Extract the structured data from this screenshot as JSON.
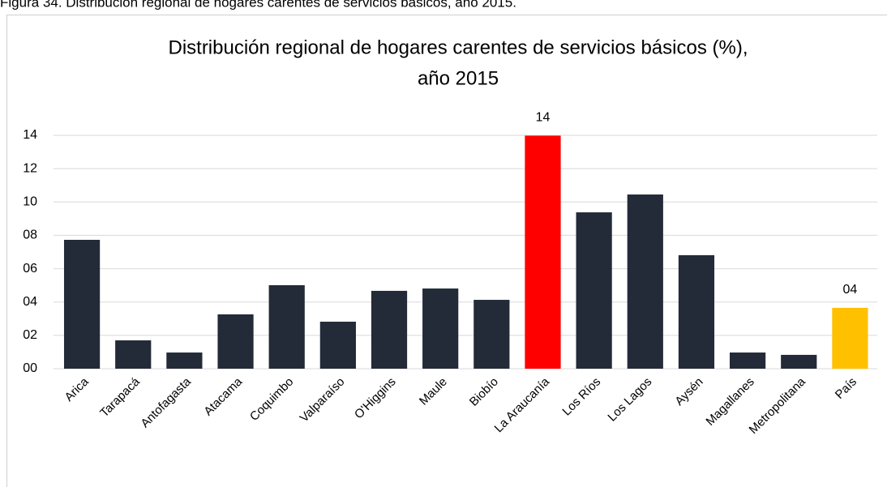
{
  "caption": "Figura 34. Distribución regional de hogares carentes de servicios básicos, año 2015.",
  "chart_data": {
    "type": "bar",
    "title": [
      "Distribución regional de hogares carentes de servicios básicos (%),",
      "año 2015"
    ],
    "categories": [
      "Arica",
      "Tarapacá",
      "Antofagasta",
      "Atacama",
      "Coquimbo",
      "Valparaíso",
      "O'Higgins",
      "Maule",
      "Biobío",
      "La Araucanía",
      "Los Ríos",
      "Los Lagos",
      "Aysén",
      "Magallanes",
      "Metropolitana",
      "País"
    ],
    "values": [
      7.73,
      1.7,
      0.97,
      3.26,
      5.01,
      2.82,
      4.67,
      4.81,
      4.13,
      13.98,
      9.38,
      10.45,
      6.81,
      0.97,
      0.83,
      3.65
    ],
    "value_labels": [
      null,
      null,
      null,
      null,
      null,
      null,
      null,
      null,
      null,
      "14",
      null,
      null,
      null,
      null,
      null,
      "04"
    ],
    "colors": [
      "#232a38",
      "#232a38",
      "#232a38",
      "#232a38",
      "#232a38",
      "#232a38",
      "#232a38",
      "#232a38",
      "#232a38",
      "#ff0000",
      "#232a38",
      "#232a38",
      "#232a38",
      "#232a38",
      "#232a38",
      "#ffc000"
    ],
    "ylim": [
      0,
      14
    ],
    "yticks": [
      {
        "value": 0,
        "label": "00"
      },
      {
        "value": 2,
        "label": "02"
      },
      {
        "value": 4,
        "label": "04"
      },
      {
        "value": 6,
        "label": "06"
      },
      {
        "value": 8,
        "label": "08"
      },
      {
        "value": 10,
        "label": "10"
      },
      {
        "value": 12,
        "label": "12"
      },
      {
        "value": 14,
        "label": "14"
      }
    ],
    "grid": true
  }
}
